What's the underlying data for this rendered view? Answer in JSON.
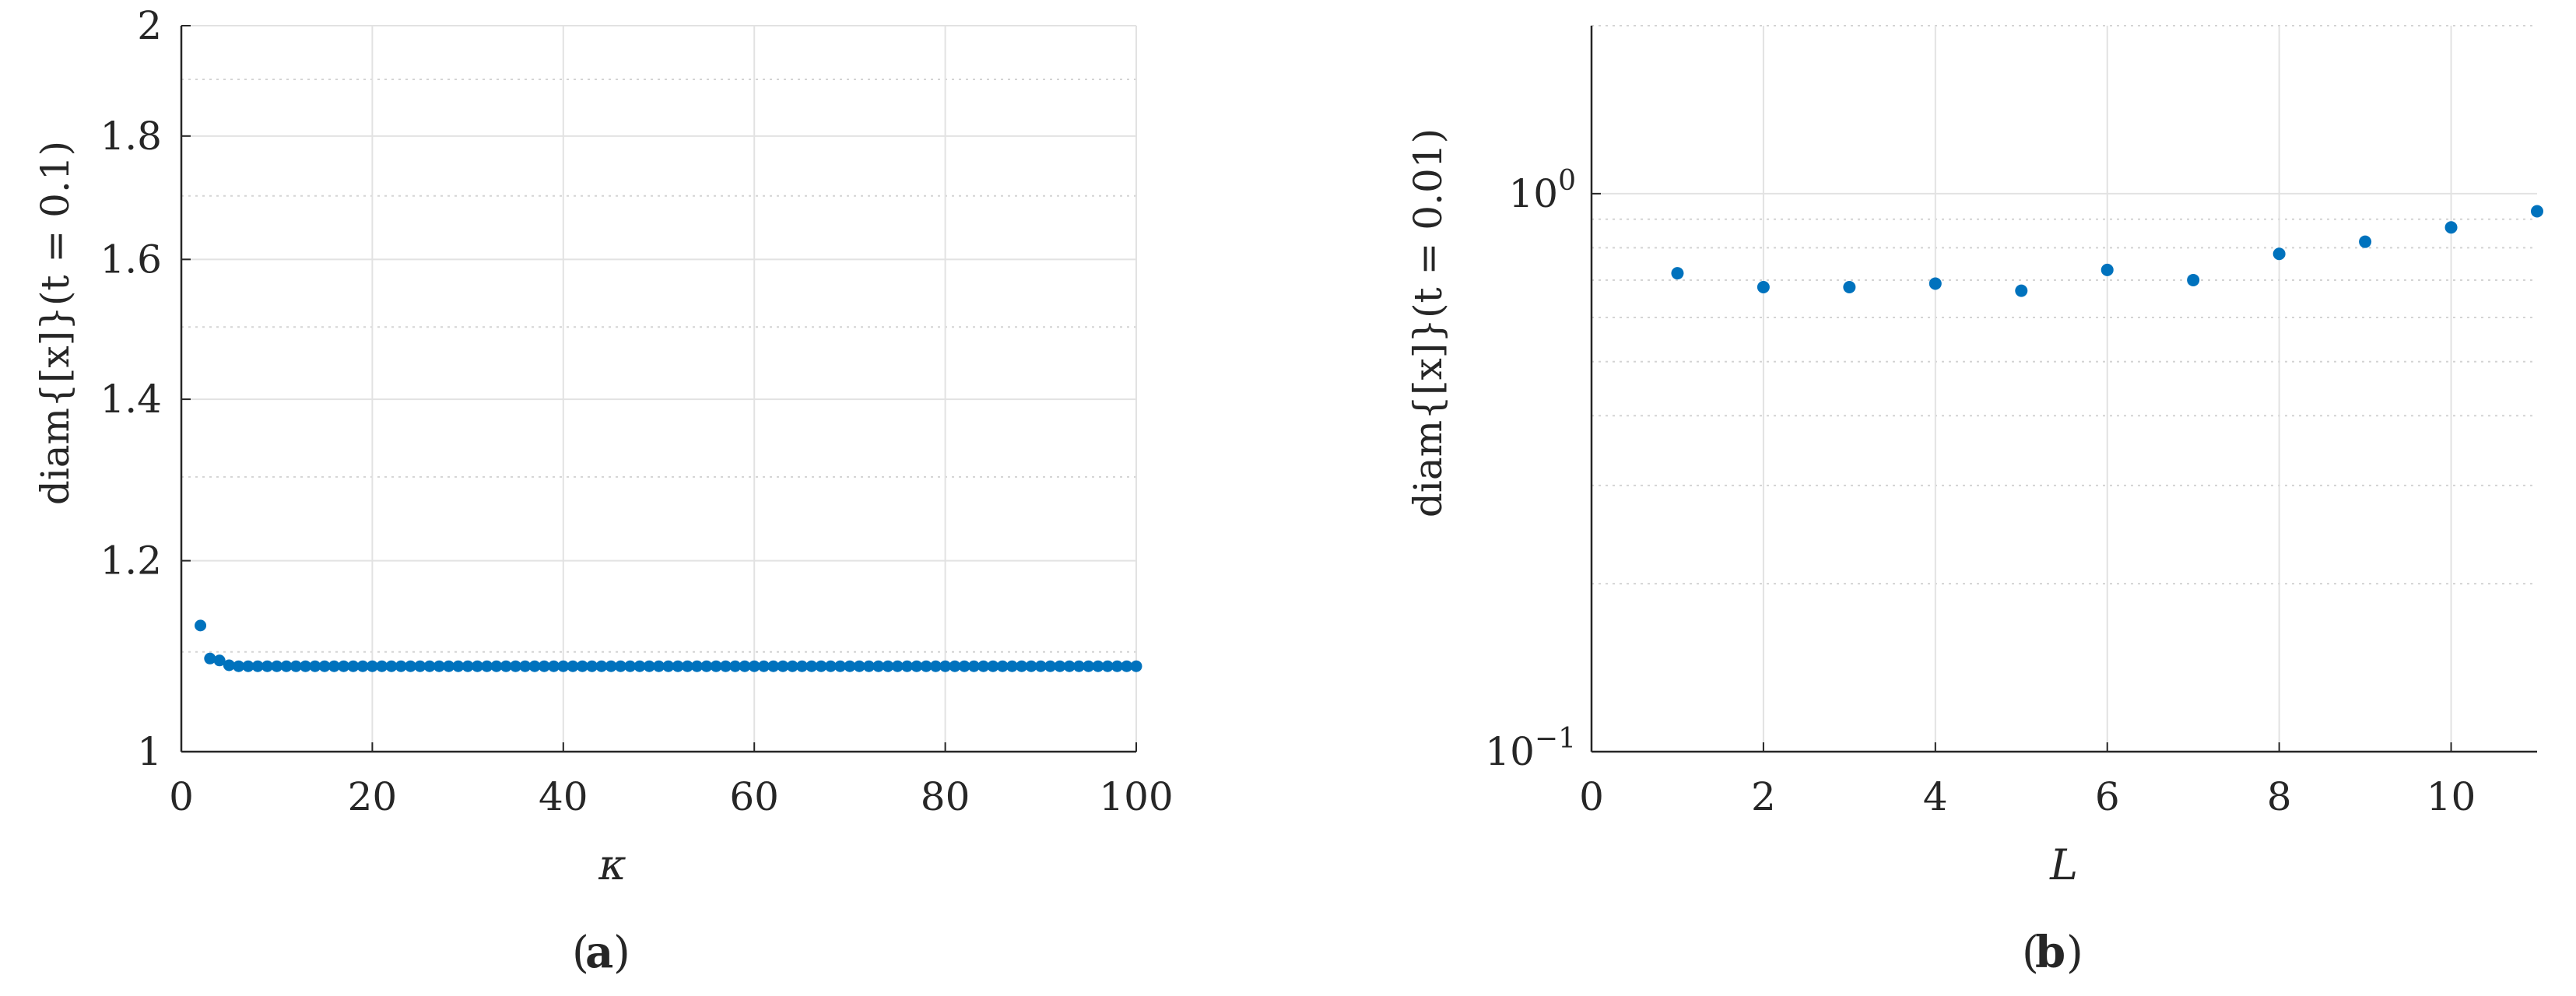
{
  "chart_data": [
    {
      "type": "scatter",
      "caption_letter": "a",
      "xlabel": "κ",
      "ylabel": "diam{[x]}(t = 0.1)",
      "xlim": [
        0,
        100
      ],
      "ylim": [
        1,
        2
      ],
      "yscale": "log",
      "grid": true,
      "xticks": [
        "0",
        "20",
        "40",
        "60",
        "80",
        "100"
      ],
      "yticks": [
        "1",
        "1.2",
        "1.4",
        "1.6",
        "1.8",
        "2"
      ],
      "marker_color": "#0072BD",
      "series": [
        {
          "x": [
            2,
            3,
            4,
            5,
            6,
            7,
            8,
            9,
            10,
            11,
            12,
            13,
            14,
            15,
            16,
            17,
            18,
            19,
            20,
            21,
            22,
            23,
            24,
            25,
            26,
            27,
            28,
            29,
            30,
            31,
            32,
            33,
            34,
            35,
            36,
            37,
            38,
            39,
            40,
            41,
            42,
            43,
            44,
            45,
            46,
            47,
            48,
            49,
            50,
            51,
            52,
            53,
            54,
            55,
            56,
            57,
            58,
            59,
            60,
            61,
            62,
            63,
            64,
            65,
            66,
            67,
            68,
            69,
            70,
            71,
            72,
            73,
            74,
            75,
            76,
            77,
            78,
            79,
            80,
            81,
            82,
            83,
            84,
            85,
            86,
            87,
            88,
            89,
            90,
            91,
            92,
            93,
            94,
            95,
            96,
            97,
            98,
            99,
            100
          ],
          "y": [
            1.128,
            1.093,
            1.091,
            1.086,
            1.085,
            1.085,
            1.085,
            1.085,
            1.085,
            1.085,
            1.085,
            1.085,
            1.085,
            1.085,
            1.085,
            1.085,
            1.085,
            1.085,
            1.085,
            1.085,
            1.085,
            1.085,
            1.085,
            1.085,
            1.085,
            1.085,
            1.085,
            1.085,
            1.085,
            1.085,
            1.085,
            1.085,
            1.085,
            1.085,
            1.085,
            1.085,
            1.085,
            1.085,
            1.085,
            1.085,
            1.085,
            1.085,
            1.085,
            1.085,
            1.085,
            1.085,
            1.085,
            1.085,
            1.085,
            1.085,
            1.085,
            1.085,
            1.085,
            1.085,
            1.085,
            1.085,
            1.085,
            1.085,
            1.085,
            1.085,
            1.085,
            1.085,
            1.085,
            1.085,
            1.085,
            1.085,
            1.085,
            1.085,
            1.085,
            1.085,
            1.085,
            1.085,
            1.085,
            1.085,
            1.085,
            1.085,
            1.085,
            1.085,
            1.085,
            1.085,
            1.085,
            1.085,
            1.085,
            1.085,
            1.085,
            1.085,
            1.085,
            1.085,
            1.085,
            1.085,
            1.085,
            1.085,
            1.085,
            1.085,
            1.085,
            1.085,
            1.085,
            1.085,
            1.085
          ]
        }
      ]
    },
    {
      "type": "scatter",
      "caption_letter": "b",
      "xlabel": "L",
      "ylabel": "diam{[x]}(t = 0.01)",
      "xlim": [
        0,
        11
      ],
      "ylim": [
        0.1,
        2
      ],
      "yscale": "log",
      "grid": true,
      "xticks": [
        "0",
        "2",
        "4",
        "6",
        "8",
        "10"
      ],
      "yticks": [
        {
          "base": "10",
          "exp": "−1",
          "value": 0.1
        },
        {
          "base": "10",
          "exp": "0",
          "value": 1
        }
      ],
      "marker_color": "#0072BD",
      "series": [
        {
          "x": [
            1,
            2,
            3,
            4,
            5,
            6,
            7,
            8,
            9,
            10,
            11
          ],
          "y": [
            0.72,
            0.68,
            0.68,
            0.69,
            0.67,
            0.73,
            0.7,
            0.78,
            0.82,
            0.87,
            0.93
          ]
        }
      ]
    }
  ]
}
